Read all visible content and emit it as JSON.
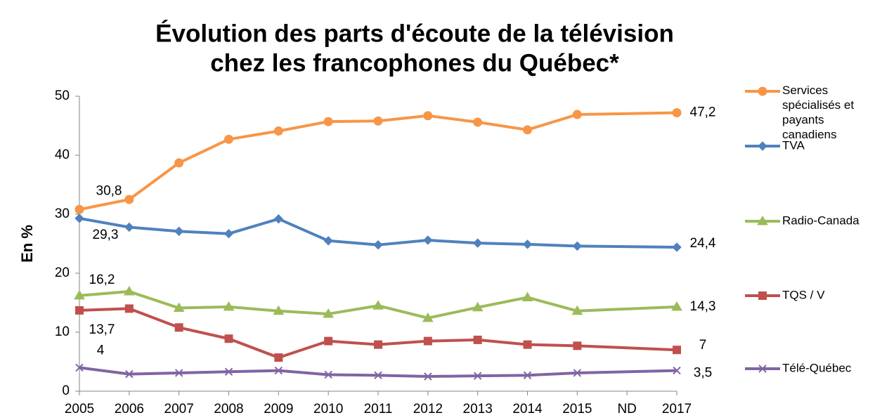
{
  "chart_data": {
    "type": "line",
    "title": [
      "Évolution des parts d'écoute de la télévision",
      "chez les francophones du Québec*"
    ],
    "ylabel": "En %",
    "categories": [
      "2005",
      "2006",
      "2007",
      "2008",
      "2009",
      "2010",
      "2011",
      "2012",
      "2013",
      "2014",
      "2015",
      "ND",
      "2017"
    ],
    "ylim": [
      0,
      50
    ],
    "yticks": [
      0,
      10,
      20,
      30,
      40,
      50
    ],
    "series": [
      {
        "name": "Services spécialisés et payants canadiens",
        "color": "#f79646",
        "marker": "circle",
        "values": [
          30.8,
          32.5,
          38.7,
          42.7,
          44.1,
          45.7,
          45.8,
          46.7,
          45.6,
          44.3,
          46.9,
          null,
          47.2
        ],
        "value_labels": [
          "30,8",
          null,
          null,
          null,
          null,
          null,
          null,
          null,
          null,
          null,
          null,
          null,
          "47,2"
        ]
      },
      {
        "name": "TVA",
        "color": "#4f81bd",
        "marker": "diamond",
        "values": [
          29.3,
          27.8,
          27.1,
          26.7,
          29.2,
          25.5,
          24.8,
          25.6,
          25.1,
          24.9,
          24.6,
          null,
          24.4
        ],
        "value_labels": [
          "29,3",
          null,
          null,
          null,
          null,
          null,
          null,
          null,
          null,
          null,
          null,
          null,
          "24,4"
        ]
      },
      {
        "name": "Radio-Canada",
        "color": "#9bbb59",
        "marker": "triangle",
        "values": [
          16.2,
          16.9,
          14.1,
          14.3,
          13.6,
          13.1,
          14.5,
          12.4,
          14.2,
          15.9,
          13.6,
          null,
          14.3
        ],
        "value_labels": [
          "16,2",
          null,
          null,
          null,
          null,
          null,
          null,
          null,
          null,
          null,
          null,
          null,
          "14,3"
        ]
      },
      {
        "name": "TQS / V",
        "color": "#c0504d",
        "marker": "square",
        "values": [
          13.7,
          14.0,
          10.8,
          8.9,
          5.7,
          8.5,
          7.9,
          8.5,
          8.7,
          7.9,
          7.7,
          null,
          7
        ],
        "value_labels": [
          "13,7",
          null,
          null,
          null,
          null,
          null,
          null,
          null,
          null,
          null,
          null,
          null,
          "7"
        ]
      },
      {
        "name": "Télé-Québec",
        "color": "#8064a2",
        "marker": "x",
        "values": [
          4,
          2.9,
          3.1,
          3.3,
          3.5,
          2.8,
          2.7,
          2.5,
          2.6,
          2.7,
          3.1,
          null,
          3.5
        ],
        "value_labels": [
          "4",
          null,
          null,
          null,
          null,
          null,
          null,
          null,
          null,
          null,
          null,
          null,
          "3,5"
        ]
      }
    ]
  }
}
